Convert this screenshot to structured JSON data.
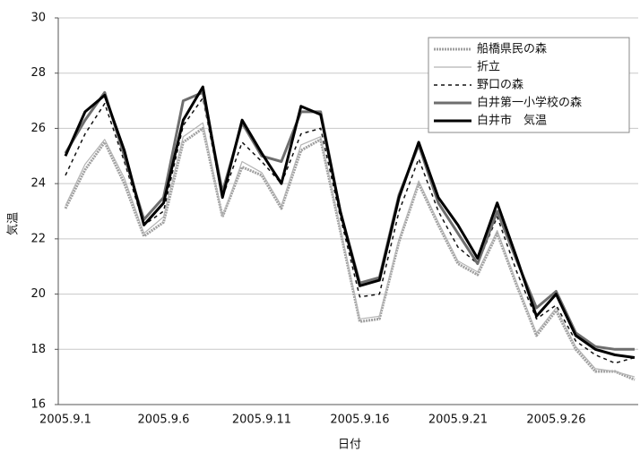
{
  "chart_data": {
    "type": "line",
    "x_label": "日付",
    "y_label": "気温",
    "categories": [
      "2005.9.1",
      null,
      null,
      null,
      null,
      "2005.9.6",
      null,
      null,
      null,
      null,
      "2005.9.11",
      null,
      null,
      null,
      null,
      "2005.9.16",
      null,
      null,
      null,
      null,
      "2005.9.21",
      null,
      null,
      null,
      null,
      "2005.9.26",
      null,
      null,
      null,
      null
    ],
    "ylim": [
      16,
      30
    ],
    "yticks": [
      16,
      18,
      20,
      22,
      24,
      26,
      28,
      30
    ],
    "grid": true,
    "legend": "upper right",
    "series": [
      {
        "name": "船橋県民の森",
        "color": "#a0a0a0",
        "values": [
          23.1,
          24.5,
          25.5,
          24.0,
          22.1,
          22.6,
          25.5,
          26.0,
          22.8,
          24.6,
          24.3,
          23.1,
          25.2,
          25.6,
          22.3,
          19.0,
          19.1,
          21.9,
          24.0,
          22.5,
          21.1,
          20.7,
          22.2,
          20.3,
          18.5,
          19.4,
          18.0,
          17.2,
          17.2,
          16.9
        ]
      },
      {
        "name": "折立",
        "color": "#b4b4b4",
        "values": [
          23.2,
          24.7,
          25.6,
          24.2,
          22.2,
          22.8,
          25.7,
          26.2,
          22.8,
          24.8,
          24.4,
          23.2,
          25.4,
          25.7,
          22.4,
          19.1,
          19.2,
          22.0,
          24.1,
          22.6,
          21.2,
          20.8,
          22.3,
          20.4,
          18.6,
          19.5,
          18.1,
          17.3,
          17.2,
          17.0
        ]
      },
      {
        "name": "野口の森",
        "color": "#111111",
        "values": [
          24.3,
          25.8,
          26.9,
          24.8,
          22.5,
          23.0,
          26.1,
          27.1,
          23.5,
          25.5,
          24.8,
          24.0,
          25.8,
          26.0,
          22.8,
          19.9,
          20.0,
          23.0,
          24.9,
          23.0,
          21.7,
          21.1,
          22.8,
          20.8,
          19.1,
          19.6,
          18.3,
          17.8,
          17.5,
          17.7
        ]
      },
      {
        "name": "白井第一小学校の森",
        "color": "#6e6e6e",
        "values": [
          25.1,
          26.3,
          27.3,
          25.0,
          22.7,
          23.5,
          27.0,
          27.3,
          23.7,
          26.2,
          25.0,
          24.8,
          26.6,
          26.6,
          23.0,
          20.4,
          20.6,
          23.6,
          25.4,
          23.3,
          22.2,
          21.1,
          23.0,
          21.2,
          19.5,
          20.1,
          18.6,
          18.1,
          18.0,
          18.0
        ]
      },
      {
        "name": "白井市　気温",
        "color": "#000000",
        "values": [
          25.0,
          26.6,
          27.2,
          25.2,
          22.5,
          23.3,
          26.3,
          27.5,
          23.5,
          26.3,
          25.1,
          24.0,
          26.8,
          26.5,
          23.0,
          20.3,
          20.5,
          23.5,
          25.5,
          23.5,
          22.5,
          21.3,
          23.3,
          21.3,
          19.2,
          20.0,
          18.5,
          18.0,
          17.8,
          17.7
        ]
      }
    ]
  }
}
